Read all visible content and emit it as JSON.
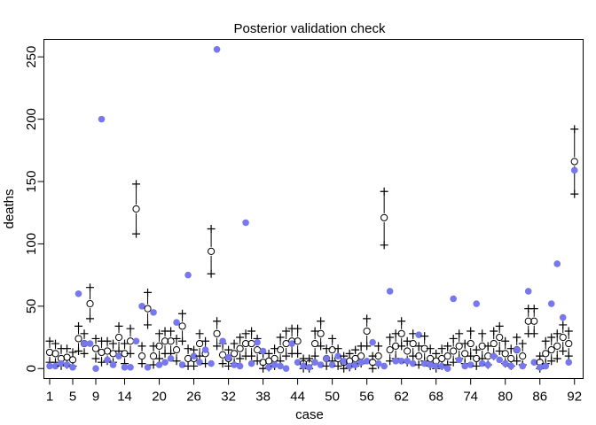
{
  "chart_data": {
    "type": "scatter",
    "title": "Posterior validation check",
    "xlabel": "case",
    "ylabel": "deaths",
    "xlim": [
      0,
      93.5
    ],
    "ylim": [
      -8,
      264
    ],
    "x_ticks": [
      1,
      5,
      9,
      14,
      20,
      26,
      32,
      38,
      44,
      50,
      56,
      62,
      68,
      74,
      80,
      86,
      92
    ],
    "y_ticks": [
      0,
      50,
      100,
      150,
      200,
      250
    ],
    "grid": false,
    "legend": "none",
    "colors": {
      "observed": "#7777ee",
      "interval": "#000000",
      "mean": "#000000",
      "box": "#000000"
    },
    "cases": [
      1,
      2,
      3,
      4,
      5,
      6,
      7,
      8,
      9,
      10,
      11,
      12,
      13,
      14,
      15,
      16,
      17,
      18,
      19,
      20,
      21,
      22,
      23,
      24,
      25,
      26,
      27,
      28,
      29,
      30,
      31,
      32,
      33,
      34,
      35,
      36,
      37,
      38,
      39,
      40,
      41,
      42,
      43,
      44,
      45,
      46,
      47,
      48,
      49,
      50,
      51,
      52,
      53,
      54,
      55,
      56,
      57,
      58,
      59,
      60,
      61,
      62,
      63,
      64,
      65,
      66,
      67,
      68,
      69,
      70,
      71,
      72,
      73,
      74,
      75,
      76,
      77,
      78,
      79,
      80,
      81,
      82,
      83,
      84,
      85,
      86,
      87,
      88,
      89,
      90,
      91,
      92
    ],
    "series": [
      {
        "name": "observed",
        "values": [
          2,
          2,
          4,
          3,
          1,
          60,
          20,
          20,
          0,
          200,
          7,
          3,
          10,
          1,
          1,
          22,
          50,
          1,
          45,
          3,
          5,
          8,
          37,
          3,
          75,
          10,
          5,
          15,
          4,
          256,
          22,
          9,
          3,
          2,
          117,
          4,
          21,
          14,
          1,
          3,
          2,
          0,
          20,
          5,
          2,
          1,
          5,
          3,
          8,
          3,
          10,
          6,
          2,
          3,
          5,
          6,
          21,
          4,
          2,
          62,
          6,
          6,
          6,
          4,
          27,
          4,
          3,
          2,
          2,
          0,
          56,
          7,
          2,
          3,
          52,
          4,
          3,
          10,
          7,
          4,
          2,
          15,
          2,
          62,
          5,
          1,
          2,
          52,
          84,
          41,
          5,
          159
        ]
      },
      {
        "name": "posterior mean",
        "values": [
          13,
          12,
          8,
          9,
          7,
          24,
          20,
          52,
          16,
          13,
          14,
          12,
          25,
          12,
          22,
          128,
          10,
          48,
          10,
          18,
          22,
          22,
          15,
          34,
          8,
          8,
          20,
          12,
          94,
          28,
          11,
          8,
          12,
          16,
          20,
          20,
          15,
          5,
          6,
          8,
          15,
          20,
          22,
          22,
          4,
          4,
          20,
          28,
          8,
          15,
          8,
          5,
          6,
          8,
          10,
          30,
          5,
          10,
          121,
          15,
          18,
          28,
          14,
          20,
          10,
          16,
          8,
          6,
          8,
          10,
          14,
          18,
          12,
          20,
          8,
          18,
          10,
          20,
          25,
          12,
          8,
          15,
          10,
          38,
          38,
          5,
          12,
          15,
          18,
          25,
          20,
          166
        ]
      },
      {
        "name": "89% interval lower",
        "values": [
          5,
          5,
          2,
          3,
          2,
          14,
          12,
          40,
          8,
          5,
          6,
          5,
          14,
          4,
          12,
          108,
          4,
          35,
          3,
          8,
          12,
          12,
          6,
          22,
          2,
          2,
          10,
          4,
          76,
          18,
          4,
          2,
          4,
          8,
          10,
          10,
          6,
          0,
          1,
          2,
          6,
          10,
          12,
          12,
          0,
          0,
          10,
          18,
          2,
          6,
          2,
          0,
          1,
          2,
          4,
          18,
          0,
          3,
          99,
          6,
          8,
          18,
          5,
          10,
          3,
          6,
          2,
          0,
          2,
          3,
          5,
          8,
          4,
          10,
          2,
          8,
          3,
          10,
          14,
          4,
          2,
          6,
          3,
          28,
          28,
          0,
          4,
          6,
          8,
          14,
          10,
          140
        ]
      },
      {
        "name": "89% interval upper",
        "values": [
          22,
          20,
          16,
          16,
          13,
          34,
          28,
          65,
          24,
          22,
          22,
          20,
          34,
          20,
          32,
          148,
          18,
          61,
          18,
          28,
          30,
          30,
          24,
          44,
          16,
          15,
          28,
          22,
          112,
          38,
          20,
          15,
          20,
          25,
          28,
          30,
          24,
          12,
          12,
          16,
          25,
          30,
          32,
          32,
          8,
          8,
          30,
          38,
          16,
          24,
          16,
          10,
          12,
          15,
          18,
          40,
          10,
          18,
          142,
          25,
          28,
          38,
          22,
          28,
          18,
          26,
          16,
          12,
          16,
          18,
          24,
          28,
          20,
          30,
          15,
          28,
          18,
          30,
          34,
          22,
          16,
          25,
          20,
          48,
          48,
          10,
          22,
          25,
          28,
          35,
          30,
          192
        ]
      }
    ]
  }
}
